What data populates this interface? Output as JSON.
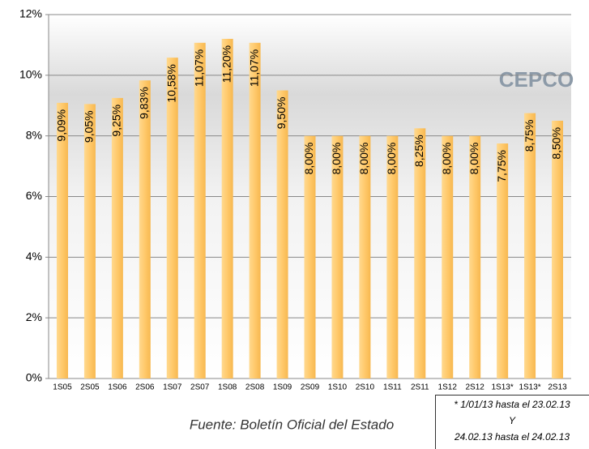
{
  "chart_data": {
    "type": "bar",
    "categories": [
      "1S05",
      "2S05",
      "1S06",
      "2S06",
      "1S07",
      "2S07",
      "1S08",
      "2S08",
      "1S09",
      "2S09",
      "1S10",
      "2S10",
      "1S11",
      "2S11",
      "1S12",
      "2S12",
      "1S13*",
      "1S13*",
      "2S13"
    ],
    "values": [
      9.09,
      9.05,
      9.25,
      9.83,
      10.58,
      11.07,
      11.2,
      11.07,
      9.5,
      8.0,
      8.0,
      8.0,
      8.0,
      8.25,
      8.0,
      8.0,
      7.75,
      8.75,
      8.5
    ],
    "value_labels": [
      "9,09%",
      "9,05%",
      "9,25%",
      "9,83%",
      "10,58%",
      "11,07%",
      "11,20%",
      "11,07%",
      "9,50%",
      "8,00%",
      "8,00%",
      "8,00%",
      "8,00%",
      "8,25%",
      "8,00%",
      "8,00%",
      "7,75%",
      "8,75%",
      "8,50%"
    ],
    "color": "#ffc96b",
    "ylim": [
      0,
      12
    ],
    "yticks": [
      {
        "value": 0,
        "label": "0%"
      },
      {
        "value": 2,
        "label": "2%"
      },
      {
        "value": 4,
        "label": "4%"
      },
      {
        "value": 6,
        "label": "6%"
      },
      {
        "value": 8,
        "label": "8%"
      },
      {
        "value": 10,
        "label": "10%"
      },
      {
        "value": 12,
        "label": "12%"
      }
    ],
    "grid": true,
    "logo": "CEPCO",
    "source": "Fuente: Boletín Oficial del Estado",
    "note": [
      "* 1/01/13 hasta el 23.02.13",
      "Y",
      "24.02.13 hasta el 24.02.13"
    ]
  }
}
